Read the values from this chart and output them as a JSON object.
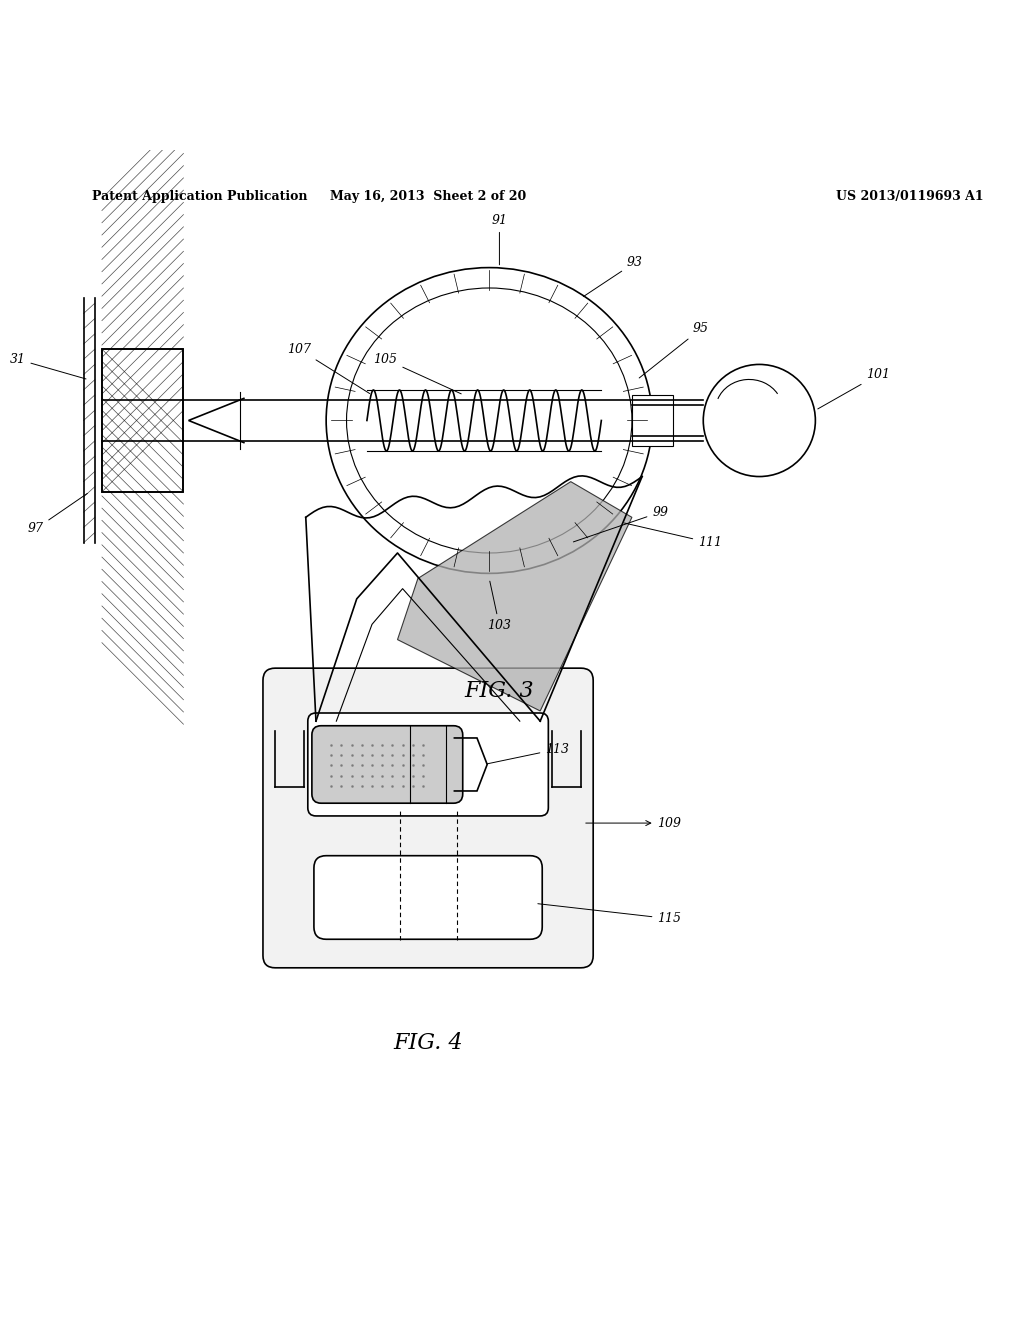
{
  "background_color": "#ffffff",
  "header_left": "Patent Application Publication",
  "header_mid": "May 16, 2013  Sheet 2 of 20",
  "header_right": "US 2013/0119693 A1",
  "fig3_label": "FIG. 3",
  "fig4_label": "FIG. 4",
  "line_color": "#000000"
}
